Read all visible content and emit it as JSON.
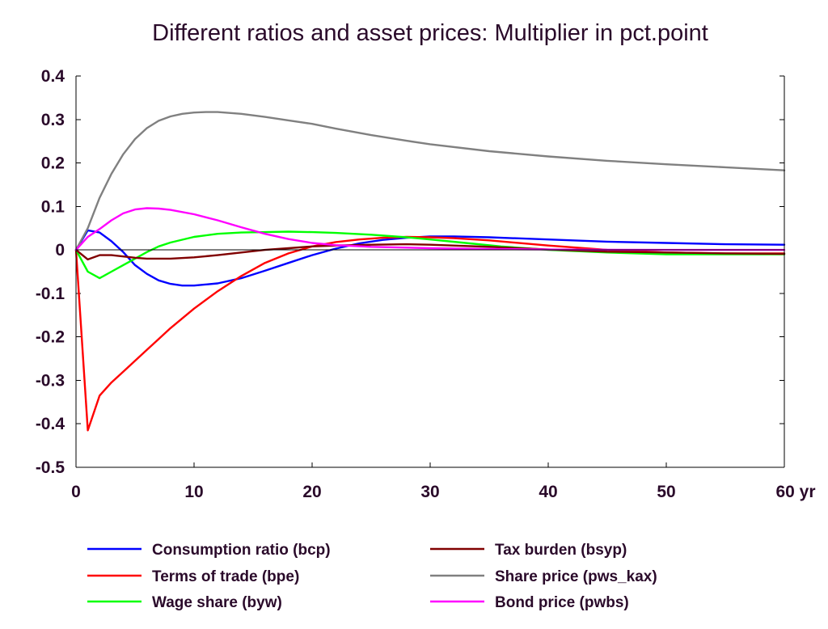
{
  "chart_data": {
    "type": "line",
    "title": "Different ratios and asset prices: Multiplier in pct.point",
    "xlabel": "",
    "ylabel": "",
    "x_unit_label": "yr",
    "xlim": [
      0,
      60
    ],
    "ylim": [
      -0.5,
      0.4
    ],
    "x_ticks": [
      0,
      10,
      20,
      30,
      40,
      50,
      60
    ],
    "x_tick_labels": [
      "0",
      "10",
      "20",
      "30",
      "40",
      "50",
      "60 yr"
    ],
    "y_ticks": [
      0.4,
      0.3,
      0.2,
      0.1,
      0,
      -0.1,
      -0.2,
      -0.3,
      -0.4,
      -0.5
    ],
    "y_tick_labels": [
      "0.4",
      "0.3",
      "0.2",
      "0.1",
      "0",
      "-0.1",
      "-0.2",
      "-0.3",
      "-0.4",
      "-0.5"
    ],
    "grid": false,
    "zero_line": true,
    "legend_position": "bottom",
    "series": [
      {
        "name": "Consumption ratio (bcp)",
        "color": "#0000ff",
        "points": [
          [
            0,
            0
          ],
          [
            1,
            0.045
          ],
          [
            2,
            0.04
          ],
          [
            3,
            0.02
          ],
          [
            4,
            -0.005
          ],
          [
            5,
            -0.035
          ],
          [
            6,
            -0.055
          ],
          [
            7,
            -0.07
          ],
          [
            8,
            -0.078
          ],
          [
            9,
            -0.082
          ],
          [
            10,
            -0.082
          ],
          [
            12,
            -0.077
          ],
          [
            14,
            -0.065
          ],
          [
            16,
            -0.048
          ],
          [
            18,
            -0.03
          ],
          [
            20,
            -0.012
          ],
          [
            22,
            0.003
          ],
          [
            24,
            0.015
          ],
          [
            26,
            0.023
          ],
          [
            28,
            0.028
          ],
          [
            30,
            0.031
          ],
          [
            32,
            0.031
          ],
          [
            35,
            0.029
          ],
          [
            40,
            0.024
          ],
          [
            45,
            0.019
          ],
          [
            50,
            0.016
          ],
          [
            55,
            0.013
          ],
          [
            60,
            0.012
          ]
        ]
      },
      {
        "name": "Terms of trade (bpe)",
        "color": "#ff0000",
        "points": [
          [
            0,
            0
          ],
          [
            1,
            -0.415
          ],
          [
            2,
            -0.335
          ],
          [
            3,
            -0.305
          ],
          [
            4,
            -0.28
          ],
          [
            5,
            -0.255
          ],
          [
            6,
            -0.23
          ],
          [
            7,
            -0.205
          ],
          [
            8,
            -0.18
          ],
          [
            10,
            -0.135
          ],
          [
            12,
            -0.095
          ],
          [
            14,
            -0.06
          ],
          [
            16,
            -0.03
          ],
          [
            18,
            -0.008
          ],
          [
            20,
            0.008
          ],
          [
            22,
            0.018
          ],
          [
            24,
            0.024
          ],
          [
            26,
            0.028
          ],
          [
            28,
            0.03
          ],
          [
            30,
            0.029
          ],
          [
            32,
            0.027
          ],
          [
            35,
            0.022
          ],
          [
            40,
            0.01
          ],
          [
            45,
            0.0
          ],
          [
            50,
            -0.006
          ],
          [
            55,
            -0.008
          ],
          [
            60,
            -0.008
          ]
        ]
      },
      {
        "name": "Wage share (byw)",
        "color": "#00ff00",
        "points": [
          [
            0,
            0
          ],
          [
            1,
            -0.05
          ],
          [
            2,
            -0.065
          ],
          [
            3,
            -0.05
          ],
          [
            4,
            -0.035
          ],
          [
            5,
            -0.02
          ],
          [
            6,
            -0.005
          ],
          [
            7,
            0.008
          ],
          [
            8,
            0.017
          ],
          [
            10,
            0.03
          ],
          [
            12,
            0.037
          ],
          [
            14,
            0.04
          ],
          [
            16,
            0.041
          ],
          [
            18,
            0.042
          ],
          [
            20,
            0.041
          ],
          [
            22,
            0.039
          ],
          [
            25,
            0.035
          ],
          [
            28,
            0.029
          ],
          [
            30,
            0.024
          ],
          [
            33,
            0.016
          ],
          [
            36,
            0.008
          ],
          [
            40,
            0.0
          ],
          [
            45,
            -0.006
          ],
          [
            50,
            -0.01
          ],
          [
            55,
            -0.01
          ],
          [
            60,
            -0.01
          ]
        ]
      },
      {
        "name": "Tax burden (bsyp)",
        "color": "#800000",
        "points": [
          [
            0,
            0
          ],
          [
            1,
            -0.022
          ],
          [
            2,
            -0.012
          ],
          [
            3,
            -0.012
          ],
          [
            4,
            -0.015
          ],
          [
            5,
            -0.018
          ],
          [
            6,
            -0.02
          ],
          [
            8,
            -0.02
          ],
          [
            10,
            -0.017
          ],
          [
            12,
            -0.012
          ],
          [
            14,
            -0.006
          ],
          [
            16,
            0.0
          ],
          [
            18,
            0.004
          ],
          [
            20,
            0.008
          ],
          [
            22,
            0.01
          ],
          [
            25,
            0.012
          ],
          [
            28,
            0.013
          ],
          [
            30,
            0.012
          ],
          [
            35,
            0.007
          ],
          [
            40,
            0.001
          ],
          [
            45,
            -0.004
          ],
          [
            50,
            -0.006
          ],
          [
            55,
            -0.008
          ],
          [
            60,
            -0.009
          ]
        ]
      },
      {
        "name": "Share price (pws_kax)",
        "color": "#808080",
        "points": [
          [
            0,
            0
          ],
          [
            1,
            0.05
          ],
          [
            2,
            0.12
          ],
          [
            3,
            0.175
          ],
          [
            4,
            0.22
          ],
          [
            5,
            0.255
          ],
          [
            6,
            0.28
          ],
          [
            7,
            0.297
          ],
          [
            8,
            0.307
          ],
          [
            9,
            0.313
          ],
          [
            10,
            0.316
          ],
          [
            11,
            0.317
          ],
          [
            12,
            0.317
          ],
          [
            14,
            0.313
          ],
          [
            16,
            0.306
          ],
          [
            18,
            0.298
          ],
          [
            20,
            0.29
          ],
          [
            22,
            0.279
          ],
          [
            25,
            0.264
          ],
          [
            28,
            0.251
          ],
          [
            30,
            0.243
          ],
          [
            35,
            0.227
          ],
          [
            40,
            0.215
          ],
          [
            45,
            0.205
          ],
          [
            50,
            0.197
          ],
          [
            55,
            0.19
          ],
          [
            60,
            0.183
          ]
        ]
      },
      {
        "name": "Bond price (pwbs)",
        "color": "#ff00ff",
        "points": [
          [
            0,
            0
          ],
          [
            1,
            0.03
          ],
          [
            2,
            0.048
          ],
          [
            3,
            0.068
          ],
          [
            4,
            0.084
          ],
          [
            5,
            0.093
          ],
          [
            6,
            0.096
          ],
          [
            7,
            0.095
          ],
          [
            8,
            0.092
          ],
          [
            10,
            0.082
          ],
          [
            12,
            0.068
          ],
          [
            14,
            0.052
          ],
          [
            16,
            0.037
          ],
          [
            18,
            0.025
          ],
          [
            20,
            0.016
          ],
          [
            22,
            0.011
          ],
          [
            25,
            0.007
          ],
          [
            30,
            0.004
          ],
          [
            35,
            0.002
          ],
          [
            40,
            0.001
          ],
          [
            50,
            0.0
          ],
          [
            60,
            0.0
          ]
        ]
      }
    ]
  }
}
